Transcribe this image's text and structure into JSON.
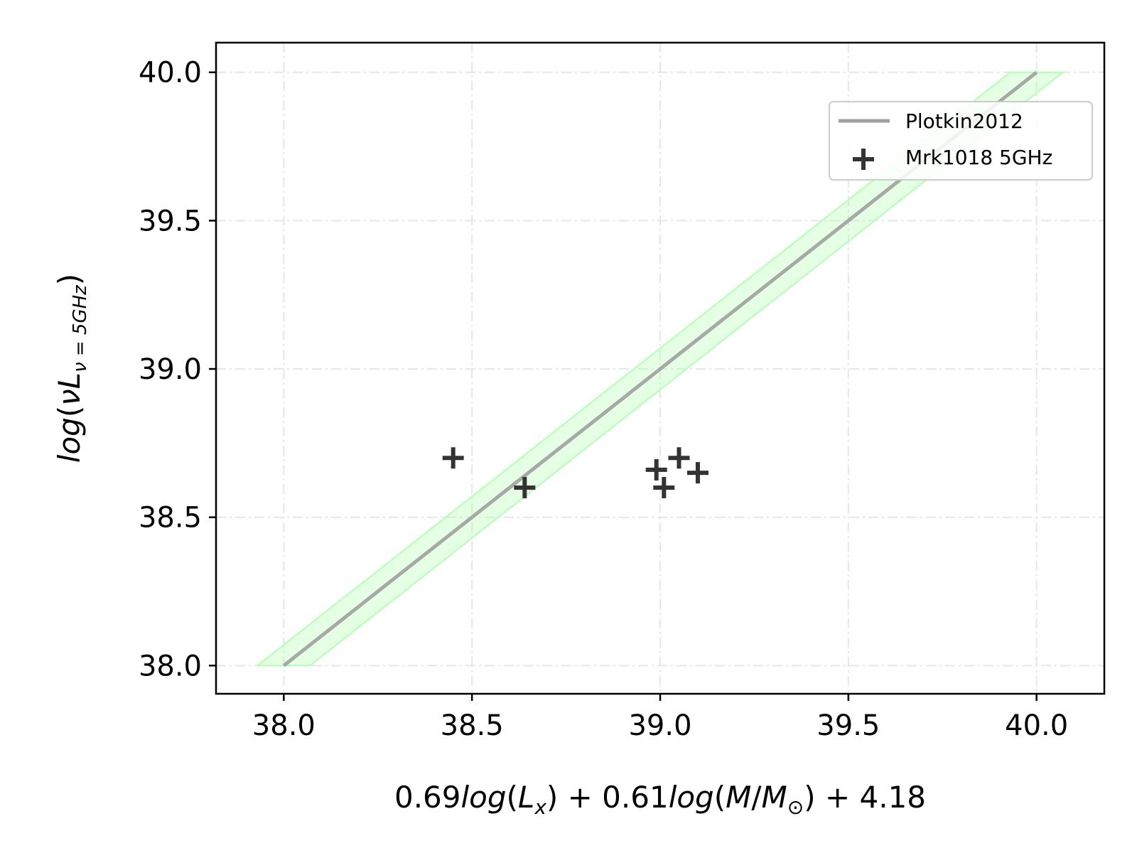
{
  "chart_data": {
    "type": "scatter",
    "title": "",
    "xlabel": {
      "parts": [
        "0.69",
        "log",
        "(",
        "L",
        "x",
        ") + 0.61",
        "log",
        "(",
        "M",
        "/",
        "M",
        "⊙",
        ") + 4.18"
      ],
      "full": "0.69log(L_x) + 0.61log(M/M_⊙) + 4.18"
    },
    "ylabel": {
      "parts": [
        "log",
        "(",
        "ν",
        "L",
        "ν = 5GHz",
        ")"
      ],
      "full": "log(νL_ν=5GHz)"
    },
    "xlim": [
      37.82,
      40.18
    ],
    "ylim": [
      37.905,
      40.1
    ],
    "xticks": [
      38.0,
      38.5,
      39.0,
      39.5,
      40.0
    ],
    "yticks": [
      38.0,
      38.5,
      39.0,
      39.5,
      40.0
    ],
    "x_tick_labels": [
      "38.0",
      "38.5",
      "39.0",
      "39.5",
      "40.0"
    ],
    "y_tick_labels": [
      "38.0",
      "38.5",
      "39.0",
      "39.5",
      "40.0"
    ],
    "grid": true,
    "legend_position": "upper-right",
    "series": [
      {
        "name": "Plotkin2012",
        "kind": "line",
        "color": "#a0a0a0",
        "x": [
          38.0,
          40.0
        ],
        "y": [
          38.0,
          40.0
        ],
        "band_halfwidth_x": 0.07,
        "band_color": "#b3ffb3"
      },
      {
        "name": "Mrk1018 5GHz",
        "kind": "scatter",
        "marker": "plus",
        "color": "#333333",
        "points": [
          {
            "x": 38.45,
            "y": 38.7
          },
          {
            "x": 38.64,
            "y": 38.6
          },
          {
            "x": 38.99,
            "y": 38.66
          },
          {
            "x": 39.01,
            "y": 38.6
          },
          {
            "x": 39.05,
            "y": 38.7
          },
          {
            "x": 39.1,
            "y": 38.65
          }
        ]
      }
    ]
  }
}
